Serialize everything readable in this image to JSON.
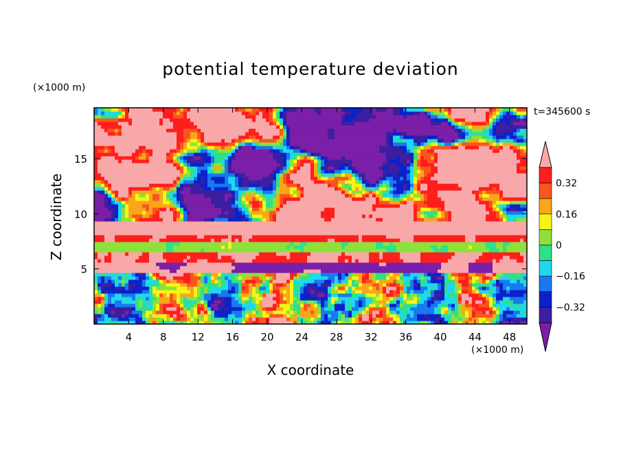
{
  "chart_data": {
    "type": "heatmap",
    "title": "potential temperature deviation",
    "xlabel": "X coordinate",
    "ylabel": "Z coordinate",
    "x_unit": "(×1000 m)",
    "y_unit": "(×1000 m)",
    "annotation": "t=345600 s",
    "xlim": [
      0,
      50
    ],
    "ylim": [
      0,
      19.6
    ],
    "x_ticks": [
      4,
      8,
      12,
      16,
      20,
      24,
      28,
      32,
      36,
      40,
      44,
      48
    ],
    "y_ticks": [
      5,
      10,
      15
    ],
    "colorbar": {
      "levels": [
        -0.4,
        -0.32,
        -0.24,
        -0.16,
        -0.08,
        0,
        0.08,
        0.16,
        0.24,
        0.32,
        0.4
      ],
      "tick_labels": [
        {
          "value": 0.32,
          "label": "0.32"
        },
        {
          "value": 0.16,
          "label": "0.16"
        },
        {
          "value": 0,
          "label": "0"
        },
        {
          "value": -0.16,
          "label": "-0.16"
        },
        {
          "value": -0.32,
          "label": "-0.32"
        }
      ],
      "colors": [
        "#7b1fa8",
        "#3c1fa0",
        "#0a22c8",
        "#1a78f0",
        "#1fd8f0",
        "#2fe08a",
        "#8ce23a",
        "#f8f419",
        "#f9a61a",
        "#f8561e",
        "#ff1e1e",
        "#f8a8a8"
      ],
      "extend": "both"
    }
  }
}
